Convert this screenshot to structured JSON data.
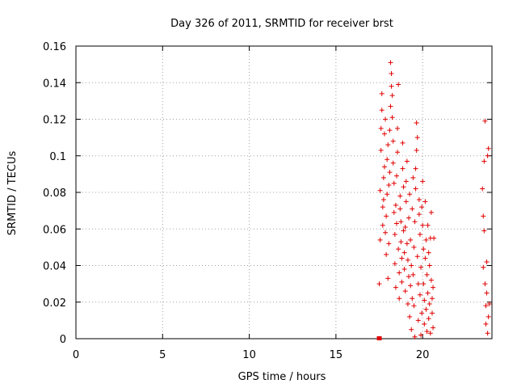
{
  "chart_data": {
    "type": "scatter",
    "title": "Day 326 of 2011, SRMTID for receiver brst",
    "xlabel": "GPS time / hours",
    "ylabel": "SRMTID / TECUs",
    "xlim": [
      0,
      24
    ],
    "ylim": [
      0,
      0.16
    ],
    "xticks": [
      0,
      5,
      10,
      15,
      20
    ],
    "xtick_labels": [
      "0",
      "5",
      "10",
      "15",
      "20"
    ],
    "yticks": [
      0,
      0.02,
      0.04,
      0.06,
      0.08,
      0.1,
      0.12,
      0.14,
      0.16
    ],
    "ytick_labels": [
      "0",
      "0.02",
      "0.04",
      "0.06",
      "0.08",
      "0.1",
      "0.12",
      "0.14",
      "0.16"
    ],
    "grid": true,
    "legend": "none",
    "marker": "plus",
    "color": "#e00000",
    "series": [
      {
        "points": [
          [
            17.5,
            0.03
          ],
          [
            17.55,
            0.054
          ],
          [
            17.55,
            0.081
          ],
          [
            17.6,
            0.103
          ],
          [
            17.6,
            0.115
          ],
          [
            17.65,
            0.125
          ],
          [
            17.65,
            0.134
          ],
          [
            17.7,
            0.062
          ],
          [
            17.7,
            0.072
          ],
          [
            17.75,
            0.076
          ],
          [
            17.75,
            0.088
          ],
          [
            17.8,
            0.094
          ],
          [
            17.8,
            0.112
          ],
          [
            17.85,
            0.12
          ],
          [
            17.85,
            0.058
          ],
          [
            17.9,
            0.046
          ],
          [
            17.9,
            0.067
          ],
          [
            17.95,
            0.079
          ],
          [
            17.95,
            0.098
          ],
          [
            18.0,
            0.106
          ],
          [
            18.0,
            0.033
          ],
          [
            18.05,
            0.052
          ],
          [
            18.05,
            0.084
          ],
          [
            18.1,
            0.091
          ],
          [
            18.1,
            0.114
          ],
          [
            18.15,
            0.127
          ],
          [
            18.15,
            0.151
          ],
          [
            18.2,
            0.145
          ],
          [
            18.2,
            0.138
          ],
          [
            18.25,
            0.133
          ],
          [
            18.25,
            0.121
          ],
          [
            18.3,
            0.108
          ],
          [
            18.3,
            0.096
          ],
          [
            18.35,
            0.085
          ],
          [
            18.35,
            0.069
          ],
          [
            18.4,
            0.057
          ],
          [
            18.4,
            0.041
          ],
          [
            18.45,
            0.028
          ],
          [
            18.45,
            0.073
          ],
          [
            18.5,
            0.063
          ],
          [
            18.5,
            0.089
          ],
          [
            18.55,
            0.102
          ],
          [
            18.55,
            0.115
          ],
          [
            18.6,
            0.139
          ],
          [
            18.6,
            0.049
          ],
          [
            18.65,
            0.036
          ],
          [
            18.65,
            0.022
          ],
          [
            18.7,
            0.071
          ],
          [
            18.7,
            0.078
          ],
          [
            18.75,
            0.064
          ],
          [
            18.75,
            0.053
          ],
          [
            18.8,
            0.044
          ],
          [
            18.8,
            0.031
          ],
          [
            18.85,
            0.093
          ],
          [
            18.85,
            0.107
          ],
          [
            18.9,
            0.083
          ],
          [
            18.9,
            0.059
          ],
          [
            18.95,
            0.047
          ],
          [
            18.95,
            0.038
          ],
          [
            19.0,
            0.026
          ],
          [
            19.0,
            0.061
          ],
          [
            19.05,
            0.075
          ],
          [
            19.05,
            0.086
          ],
          [
            19.1,
            0.097
          ],
          [
            19.1,
            0.052
          ],
          [
            19.15,
            0.043
          ],
          [
            19.15,
            0.019
          ],
          [
            19.2,
            0.034
          ],
          [
            19.2,
            0.066
          ],
          [
            19.25,
            0.079
          ],
          [
            19.25,
            0.012
          ],
          [
            19.3,
            0.029
          ],
          [
            19.3,
            0.054
          ],
          [
            19.35,
            0.04
          ],
          [
            19.35,
            0.005
          ],
          [
            19.4,
            0.022
          ],
          [
            19.4,
            0.071
          ],
          [
            19.45,
            0.088
          ],
          [
            19.45,
            0.035
          ],
          [
            19.5,
            0.05
          ],
          [
            19.5,
            0.018
          ],
          [
            19.55,
            0.001
          ],
          [
            19.55,
            0.064
          ],
          [
            19.6,
            0.082
          ],
          [
            19.6,
            0.093
          ],
          [
            19.65,
            0.103
          ],
          [
            19.65,
            0.118
          ],
          [
            19.7,
            0.11
          ],
          [
            19.7,
            0.045
          ],
          [
            19.75,
            0.03
          ],
          [
            19.75,
            0.01
          ],
          [
            19.8,
            0.068
          ],
          [
            19.8,
            0.076
          ],
          [
            19.85,
            0.057
          ],
          [
            19.85,
            0.024
          ],
          [
            19.9,
            0.039
          ],
          [
            19.9,
            0.002
          ],
          [
            19.95,
            0.014
          ],
          [
            19.95,
            0.072
          ],
          [
            20.0,
            0.086
          ],
          [
            20.0,
            0.062
          ],
          [
            20.05,
            0.049
          ],
          [
            20.05,
            0.03
          ],
          [
            20.1,
            0.008
          ],
          [
            20.1,
            0.021
          ],
          [
            20.15,
            0.044
          ],
          [
            20.15,
            0.075
          ],
          [
            20.2,
            0.054
          ],
          [
            20.2,
            0.016
          ],
          [
            20.25,
            0.004
          ],
          [
            20.25,
            0.035
          ],
          [
            20.3,
            0.062
          ],
          [
            20.3,
            0.025
          ],
          [
            20.35,
            0.011
          ],
          [
            20.35,
            0.047
          ],
          [
            20.4,
            0.04
          ],
          [
            20.4,
            0.019
          ],
          [
            20.45,
            0.003
          ],
          [
            20.45,
            0.055
          ],
          [
            20.5,
            0.069
          ],
          [
            20.5,
            0.032
          ],
          [
            20.55,
            0.014
          ],
          [
            20.55,
            0.022
          ],
          [
            20.6,
            0.006
          ],
          [
            20.6,
            0.028
          ],
          [
            20.65,
            0.055
          ],
          [
            23.45,
            0.082
          ],
          [
            23.5,
            0.067
          ],
          [
            23.5,
            0.039
          ],
          [
            23.55,
            0.097
          ],
          [
            23.55,
            0.059
          ],
          [
            23.6,
            0.119
          ],
          [
            23.6,
            0.03
          ],
          [
            23.65,
            0.018
          ],
          [
            23.65,
            0.008
          ],
          [
            23.7,
            0.042
          ],
          [
            23.7,
            0.025
          ],
          [
            23.75,
            0.003
          ],
          [
            23.75,
            0.1
          ],
          [
            23.8,
            0.104
          ],
          [
            23.8,
            0.012
          ],
          [
            23.85,
            0.019
          ]
        ]
      }
    ],
    "square_points": [
      [
        17.5,
        0.0
      ]
    ]
  }
}
